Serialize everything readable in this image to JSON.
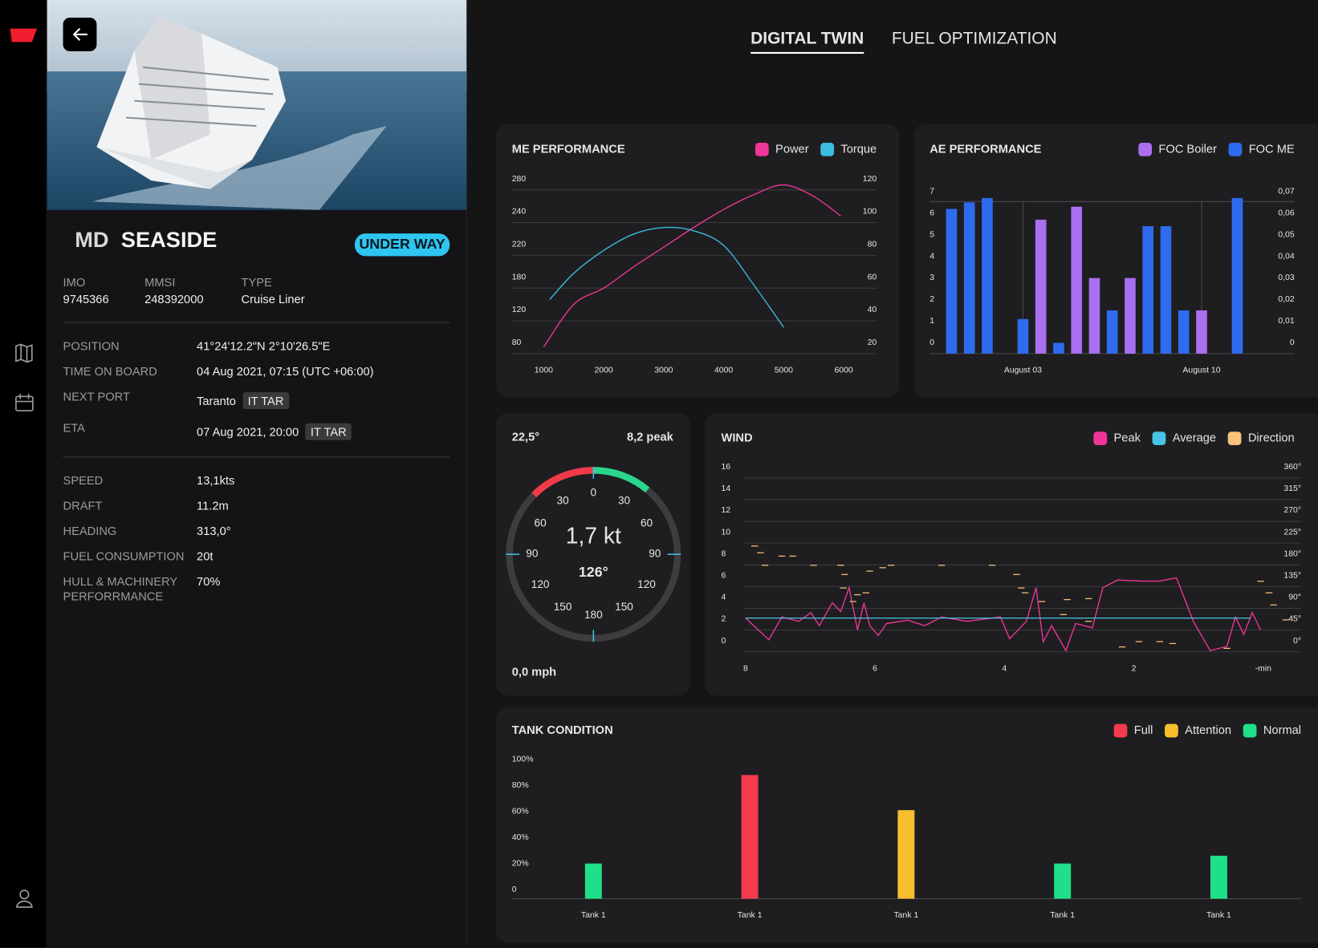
{
  "tabs": {
    "items": [
      "DIGITAL TWIN",
      "FUEL OPTIMIZATION"
    ],
    "active": 0
  },
  "vessel": {
    "prefix": "MD",
    "name": "SEASIDE",
    "status": "UNDER WAY",
    "ids": [
      {
        "label": "IMO",
        "value": "9745366"
      },
      {
        "label": "MMSI",
        "value": "248392000"
      },
      {
        "label": "TYPE",
        "value": "Cruise Liner"
      }
    ],
    "voyage": [
      {
        "label": "POSITION",
        "value": "41°24'12.2\"N 2°10'26.5\"E"
      },
      {
        "label": "TIME ON BOARD",
        "value": "04 Aug 2021, 07:15 (UTC +06:00)"
      },
      {
        "label": "NEXT PORT",
        "value": "Taranto",
        "tag": "IT TAR"
      },
      {
        "label": "ETA",
        "value": "07 Aug 2021, 20:00",
        "tag": "IT TAR"
      }
    ],
    "stats": [
      {
        "label": "SPEED",
        "value": "13,1kts"
      },
      {
        "label": "DRAFT",
        "value": "11.2m"
      },
      {
        "label": "HEADING",
        "value": "313,0°"
      },
      {
        "label": "FUEL CONSUMPTION",
        "value": "20t"
      },
      {
        "label": "HULL & MACHINERY PERFORRMANCE",
        "value": "70%"
      }
    ]
  },
  "chart_data": [
    {
      "type": "line",
      "title": "ME PERFORMANCE",
      "smooth": true,
      "grid": true,
      "xlim": [
        470,
        6550
      ],
      "xticks": [
        1000,
        2000,
        3000,
        4000,
        5000,
        6000
      ],
      "ylabels": [
        280,
        240,
        220,
        180,
        120,
        80
      ],
      "y2lim": [
        20,
        120
      ],
      "y2ticks": [
        120,
        100,
        80,
        60,
        40,
        20
      ],
      "series": [
        {
          "name": "Power",
          "color": "#f0359a",
          "axis": "y2",
          "x": [
            1000,
            1500,
            2000,
            2500,
            3000,
            3500,
            4000,
            4500,
            5000,
            5500,
            5950
          ],
          "values": [
            24,
            50,
            60,
            73,
            85,
            97,
            108,
            117,
            123,
            116,
            104
          ]
        },
        {
          "name": "Torque",
          "color": "#3bbde0",
          "axis": "y2",
          "x": [
            1100,
            1500,
            2000,
            2500,
            3000,
            3500,
            4000,
            4500,
            5000
          ],
          "values": [
            53,
            69,
            83,
            93,
            97,
            95,
            86,
            62,
            36
          ]
        }
      ]
    },
    {
      "type": "bar",
      "title": "AE PERFORMANCE",
      "xgrid": true,
      "categories": [
        null,
        null,
        null,
        null,
        "August 03",
        null,
        null,
        null,
        null,
        null,
        null,
        null,
        null,
        null,
        "August 10",
        null,
        null
      ],
      "ylim": [
        0,
        7
      ],
      "yticks": [
        0,
        1,
        2,
        3,
        4,
        5,
        6,
        7
      ],
      "y2lim": [
        0,
        0.07
      ],
      "y2ticks": [
        0,
        {
          "value": 0.01,
          "label": "0,01"
        },
        {
          "value": 0.02,
          "label": "0,02"
        },
        {
          "value": 0.03,
          "label": "0,03"
        },
        {
          "value": 0.04,
          "label": "0,04"
        },
        {
          "value": 0.05,
          "label": "0,05"
        },
        {
          "value": 0.06,
          "label": "0,06"
        },
        {
          "value": 0.07,
          "label": "0,07"
        }
      ],
      "series": [
        {
          "name": "FOC Boiler",
          "color": "#a96ff0",
          "values": [
            null,
            null,
            null,
            null,
            null,
            6.2,
            null,
            6.8,
            3.5,
            null,
            3.5,
            null,
            null,
            null,
            2.0,
            null,
            null
          ]
        },
        {
          "name": "FOC ME",
          "color": "#2f6bef",
          "values": [
            6.7,
            7.0,
            7.2,
            null,
            1.6,
            null,
            0.5,
            null,
            null,
            2.0,
            null,
            5.9,
            5.9,
            2.0,
            null,
            null,
            7.2
          ]
        }
      ]
    },
    {
      "type": "gauge",
      "heading": "22,5°",
      "peak": "8,2 peak",
      "speed": "1,7 kt",
      "direction": "126°",
      "footer": "0,0 mph",
      "range": [
        0,
        180
      ],
      "ticks": [
        0,
        30,
        60,
        90,
        120,
        150,
        180
      ],
      "segments": [
        {
          "from": -45,
          "to": 0,
          "color": "#f23a48"
        },
        {
          "from": 0,
          "to": 40,
          "color": "#2ad68c"
        }
      ]
    },
    {
      "type": "line",
      "title": "WIND",
      "grid": true,
      "xlim": [
        8,
        -0.6
      ],
      "xticks": [
        8,
        6,
        4,
        2,
        {
          "value": 0,
          "label": "-min"
        }
      ],
      "ylim": [
        0,
        16
      ],
      "yticks": [
        0,
        2,
        4,
        6,
        8,
        10,
        12,
        14,
        16
      ],
      "y2lim": [
        0,
        360
      ],
      "y2ticks": [
        {
          "value": 0,
          "label": "0°"
        },
        {
          "value": 45,
          "label": "45°"
        },
        {
          "value": 90,
          "label": "90°"
        },
        {
          "value": 135,
          "label": "135°"
        },
        {
          "value": 180,
          "label": "180°"
        },
        {
          "value": 225,
          "label": "225°"
        },
        {
          "value": 270,
          "label": "270°"
        },
        {
          "value": 315,
          "label": "315°"
        },
        {
          "value": 360,
          "label": "360°"
        }
      ],
      "series": [
        {
          "name": "Peak",
          "color": "#f0359a",
          "x": [
            8.0,
            7.64,
            7.44,
            7.18,
            6.99,
            6.86,
            6.66,
            6.53,
            6.4,
            6.27,
            6.17,
            6.08,
            5.95,
            5.82,
            5.49,
            5.23,
            4.97,
            4.58,
            4.06,
            3.92,
            3.66,
            3.51,
            3.4,
            3.27,
            3.05,
            2.9,
            2.64,
            2.48,
            2.25,
            1.86,
            1.6,
            1.34,
            1.08,
            0.82,
            0.56,
            0.43,
            0.3,
            0.17,
            0.04
          ],
          "values": [
            3.1,
            1.1,
            3.2,
            2.8,
            3.6,
            2.4,
            4.5,
            3.7,
            5.9,
            2.0,
            4.5,
            2.4,
            1.5,
            2.6,
            2.9,
            2.4,
            3.2,
            2.8,
            3.2,
            1.2,
            2.8,
            5.9,
            0.9,
            2.4,
            0.1,
            2.6,
            2.2,
            5.9,
            6.6,
            6.5,
            6.5,
            6.8,
            2.8,
            0.1,
            0.5,
            3.2,
            1.6,
            3.6,
            2.0
          ]
        },
        {
          "name": "Average",
          "color": "#46c3e6",
          "x": [
            8,
            0.2
          ],
          "values": [
            3.1,
            3.1
          ]
        },
        {
          "name": "Direction",
          "color": "#f7c27a",
          "axis": "y2",
          "marker": "dash",
          "x": [
            7.86,
            7.77,
            7.44,
            7.27,
            7.7,
            6.95,
            6.53,
            5.75,
            4.97,
            4.19,
            6.47,
            6.08,
            5.88,
            6.49,
            6.27,
            6.34,
            6.14,
            3.81,
            3.74,
            3.68,
            3.42,
            3.03,
            2.7,
            3.09,
            2.7,
            2.18,
            1.92,
            1.6,
            1.4,
            0.56,
            0.04,
            -0.09,
            -0.16,
            -0.35
          ],
          "values": [
            219,
            205,
            198,
            198,
            179,
            179,
            179,
            179,
            179,
            179,
            160,
            167,
            174,
            132,
            118,
            104,
            122,
            160,
            132,
            122,
            104,
            108,
            110,
            77,
            63,
            10,
            21,
            21,
            17,
            7,
            146,
            122,
            97,
            66
          ]
        }
      ]
    },
    {
      "type": "bar",
      "title": "TANK CONDITION",
      "categories": [
        "Tank 1",
        "Tank 1",
        "Tank 1",
        "Tank 1",
        "Tank 1"
      ],
      "values": [
        27,
        95,
        68,
        27,
        33
      ],
      "status": [
        2,
        0,
        1,
        2,
        2
      ],
      "legend": [
        {
          "name": "Full",
          "color": "#f43b4e"
        },
        {
          "name": "Attention",
          "color": "#f7be2e"
        },
        {
          "name": "Normal",
          "color": "#1fe08a"
        }
      ],
      "ylim": [
        0,
        100
      ],
      "yticks": [
        0,
        {
          "value": 20,
          "label": "20%"
        },
        {
          "value": 40,
          "label": "40%"
        },
        {
          "value": 60,
          "label": "60%"
        },
        {
          "value": 80,
          "label": "80%"
        },
        {
          "value": 100,
          "label": "100%"
        }
      ]
    }
  ]
}
